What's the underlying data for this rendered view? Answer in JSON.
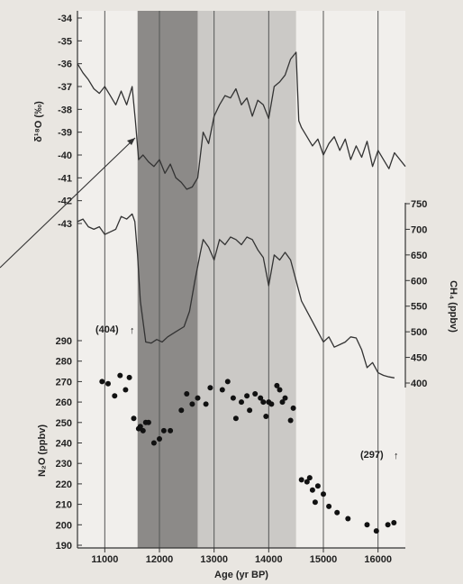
{
  "chart_data": [
    {
      "panel": "d18O",
      "type": "line",
      "ylabel": "δ¹⁸O (‰)",
      "ylim": [
        -43.4,
        -33.5
      ],
      "yticks": [
        -34,
        -35,
        -36,
        -37,
        -38,
        -39,
        -40,
        -41,
        -42,
        -43
      ],
      "series": [
        {
          "x": [
            10500,
            10600,
            10700,
            10800,
            10900,
            11000,
            11100,
            11200,
            11300,
            11400,
            11500,
            11560,
            11620,
            11700,
            11800,
            11900,
            12000,
            12100,
            12200,
            12300,
            12400,
            12500,
            12600,
            12700,
            12800,
            12900,
            13000,
            13100,
            13200,
            13300,
            13400,
            13500,
            13600,
            13700,
            13800,
            13900,
            14000,
            14100,
            14200,
            14300,
            14400,
            14500,
            14550,
            14600,
            14700,
            14800,
            14900,
            15000,
            15100,
            15200,
            15300,
            15400,
            15500,
            15600,
            15700,
            15800,
            15900,
            16000,
            16100,
            16200,
            16300,
            16500
          ],
          "y": [
            -36.0,
            -36.4,
            -36.7,
            -37.1,
            -37.3,
            -37.0,
            -37.4,
            -37.8,
            -37.2,
            -37.8,
            -37.0,
            -38.5,
            -40.2,
            -40.0,
            -40.3,
            -40.5,
            -40.2,
            -40.8,
            -40.4,
            -41.0,
            -41.2,
            -41.5,
            -41.4,
            -41.0,
            -39.0,
            -39.5,
            -38.3,
            -37.8,
            -37.4,
            -37.5,
            -37.1,
            -37.8,
            -37.5,
            -38.3,
            -37.6,
            -37.8,
            -38.4,
            -37.0,
            -36.8,
            -36.5,
            -35.8,
            -35.5,
            -38.5,
            -38.8,
            -39.2,
            -39.6,
            -39.3,
            -40.0,
            -39.5,
            -39.2,
            -39.8,
            -39.3,
            -40.2,
            -39.6,
            -40.1,
            -39.4,
            -40.5,
            -39.8,
            -40.2,
            -40.6,
            -39.9,
            -40.5
          ]
        }
      ]
    },
    {
      "panel": "CH4",
      "type": "line",
      "ylabel": "CH₄ (ppbv)",
      "ylim": [
        385,
        765
      ],
      "yticks": [
        750,
        700,
        650,
        600,
        550,
        500,
        450,
        400
      ],
      "series": [
        {
          "x": [
            10500,
            10600,
            10700,
            10800,
            10900,
            11000,
            11100,
            11200,
            11300,
            11400,
            11500,
            11550,
            11600,
            11650,
            11750,
            11850,
            11950,
            12050,
            12150,
            12300,
            12450,
            12550,
            12650,
            12750,
            12800,
            12900,
            13000,
            13100,
            13200,
            13300,
            13400,
            13500,
            13600,
            13700,
            13800,
            13900,
            14000,
            14100,
            14200,
            14300,
            14400,
            14500,
            14600,
            14700,
            14800,
            14900,
            15000,
            15100,
            15200,
            15300,
            15400,
            15500,
            15600,
            15700,
            15800,
            15900,
            16000,
            16100,
            16200,
            16300
          ],
          "y": [
            715,
            720,
            705,
            700,
            705,
            690,
            695,
            700,
            725,
            720,
            730,
            715,
            650,
            560,
            480,
            478,
            485,
            480,
            490,
            500,
            510,
            540,
            600,
            655,
            680,
            665,
            640,
            680,
            670,
            685,
            680,
            670,
            685,
            680,
            660,
            645,
            590,
            650,
            640,
            655,
            640,
            600,
            560,
            540,
            520,
            500,
            480,
            490,
            470,
            475,
            480,
            490,
            488,
            465,
            430,
            440,
            420,
            415,
            412,
            410
          ]
        }
      ]
    },
    {
      "panel": "N2O",
      "type": "scatter",
      "xlabel": "Age (yr BP)",
      "ylabel": "N₂O (ppbv)",
      "xlim": [
        10500,
        16500
      ],
      "xticks": [
        11000,
        12000,
        13000,
        14000,
        15000,
        16000
      ],
      "ylim": [
        188,
        300
      ],
      "yticks": [
        290,
        280,
        270,
        260,
        250,
        240,
        230,
        220,
        210,
        200,
        190
      ],
      "series": [
        {
          "x": [
            10950,
            11060,
            11180,
            11280,
            11380,
            11450,
            11530,
            11620,
            11650,
            11700,
            11750,
            11800,
            11900,
            12000,
            12080,
            12200,
            12400,
            12500,
            12600,
            12700,
            12850,
            12930,
            13150,
            13250,
            13350,
            13400,
            13500,
            13600,
            13650,
            13750,
            13850,
            13900,
            13950,
            14000,
            14050,
            14150,
            14200,
            14250,
            14300,
            14400,
            14450,
            14600,
            14700,
            14750,
            14800,
            14850,
            14900,
            15000,
            15100,
            15250,
            15450,
            15800,
            15970,
            16180,
            16290
          ],
          "y": [
            270,
            269,
            263,
            273,
            266,
            272,
            252,
            247,
            248,
            246,
            250,
            250,
            240,
            242,
            246,
            246,
            256,
            264,
            259,
            262,
            259,
            267,
            266,
            270,
            262,
            252,
            260,
            263,
            256,
            264,
            262,
            260,
            253,
            260,
            259,
            268,
            266,
            260,
            262,
            251,
            257,
            222,
            221,
            223,
            217,
            211,
            219,
            215,
            209,
            206,
            203,
            200,
            197,
            200,
            201
          ]
        }
      ],
      "annotations": [
        {
          "text": "(404)",
          "x": 11450
        },
        {
          "text": "(297)",
          "x": 16150
        }
      ]
    }
  ],
  "shading": [
    {
      "from": 11600,
      "to": 12700,
      "color": "#8c8a88"
    },
    {
      "from": 12700,
      "to": 14500,
      "color": "#cbc9c6"
    }
  ]
}
